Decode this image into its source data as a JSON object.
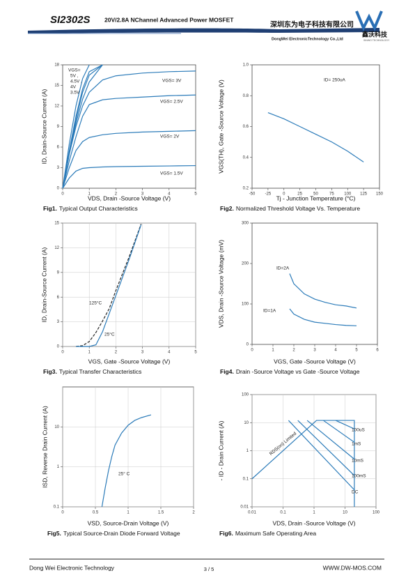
{
  "header": {
    "part": "SI2302S",
    "subtitle": "20V/2.8A  NChannel Advanced Power MOSFET",
    "company_cn": "深圳东为电子科技有限公司",
    "company_en": "DongWei ElectronicTechnology Co.,Ltd",
    "logo_cn": "鑫沃科技",
    "logo_en": "SINWO TECHNOLOGY"
  },
  "chart_data": [
    {
      "type": "line",
      "caption_number": "Fig1.",
      "caption": "Typical Output Characteristics",
      "xlabel": "VDS, Drain -Source Voltage (V)",
      "ylabel": "ID, Drain-Source Current (A)",
      "xlim": [
        0,
        5
      ],
      "ylim": [
        0,
        18
      ],
      "xticks": [
        0,
        1,
        2,
        3,
        4,
        5
      ],
      "yticks": [
        0,
        3,
        6,
        9,
        12,
        15,
        18
      ],
      "grid": false,
      "annotations": [
        "VGS="
      ],
      "x": [
        0,
        0.25,
        0.5,
        0.75,
        1,
        1.5,
        2,
        3,
        4,
        5
      ],
      "series": [
        {
          "name": "VGS= 3V",
          "color": "#2b7bb9",
          "values": [
            0,
            5,
            9,
            12,
            14,
            15.8,
            16.4,
            16.8,
            17,
            17.1
          ]
        },
        {
          "name": "VGS= 2.5V",
          "color": "#2b7bb9",
          "values": [
            0,
            4,
            7.5,
            10.5,
            12.2,
            12.9,
            13.1,
            13.3,
            13.5,
            13.6
          ]
        },
        {
          "name": "VGS= 2V",
          "color": "#2b7bb9",
          "values": [
            0,
            3,
            5.5,
            6.8,
            7.4,
            7.8,
            8,
            8.2,
            8.3,
            8.4
          ]
        },
        {
          "name": "VGS= 1.5V",
          "color": "#2b7bb9",
          "values": [
            0,
            1.5,
            2.5,
            2.9,
            3,
            3.1,
            3.15,
            3.2,
            3.25,
            3.3
          ]
        },
        {
          "name": "5V ,",
          "color": "#2b7bb9",
          "values": [
            0,
            6.5,
            12,
            16,
            18,
            null,
            null,
            null,
            null,
            null
          ]
        },
        {
          "name": "4.5V ,",
          "color": "#2b7bb9",
          "values": [
            0,
            5.5,
            10.5,
            14.5,
            17,
            18,
            null,
            null,
            null,
            null
          ]
        },
        {
          "name": "4V",
          "color": "#2b7bb9",
          "values": [
            0,
            5.2,
            10,
            14,
            16.5,
            18,
            null,
            null,
            null,
            null
          ]
        },
        {
          "name": "3.5V",
          "color": "#2b7bb9",
          "values": [
            0,
            5,
            9.5,
            13,
            15.5,
            18,
            null,
            null,
            null,
            null
          ]
        }
      ]
    },
    {
      "type": "line",
      "caption_number": "Fig2.",
      "caption": "Normalized Threshold Voltage Vs. Temperature",
      "xlabel": "Tj - Junction Temperature (°C)",
      "ylabel": "VGS(TH), Gate -Source Voltage (V)",
      "xlim": [
        -50,
        150
      ],
      "ylim": [
        0.2,
        1.0
      ],
      "xticks": [
        -50,
        -25,
        0,
        25,
        50,
        75,
        100,
        125,
        150
      ],
      "yticks": [
        0.2,
        0.4,
        0.6,
        0.8,
        {
          "value": 1.0,
          "label": "1.0"
        }
      ],
      "grid": false,
      "annotations": [
        "ID= 250uA"
      ],
      "x": [
        -25,
        0,
        25,
        50,
        75,
        100,
        125
      ],
      "series": [
        {
          "color": "#2b7bb9",
          "values": [
            0.69,
            0.65,
            0.6,
            0.55,
            0.5,
            0.44,
            0.37
          ]
        }
      ]
    },
    {
      "type": "line",
      "caption_number": "Fig3.",
      "caption": "Typical Transfer Characteristics",
      "xlabel": "VGS, Gate -Source Voltage (V)",
      "ylabel": "ID, Drain-Source Current (A)",
      "xlim": [
        0,
        5
      ],
      "ylim": [
        0,
        15
      ],
      "xticks": [
        0,
        1,
        2,
        3,
        4,
        5
      ],
      "yticks": [
        0,
        3,
        6,
        9,
        12,
        15
      ],
      "grid": true,
      "x": [
        0.5,
        0.75,
        1,
        1.25,
        1.5,
        1.75,
        2,
        2.5,
        2.95
      ],
      "series": [
        {
          "name": "125°C",
          "color": "#222222",
          "dashed": true,
          "values": [
            0,
            0.1,
            0.6,
            1.7,
            3.1,
            4.6,
            6.8,
            10.9,
            14.9
          ]
        },
        {
          "name": "25°C",
          "color": "#2b7bb9",
          "values": [
            0,
            0,
            0,
            0.2,
            1.8,
            4,
            6.2,
            10.6,
            14.8
          ]
        }
      ]
    },
    {
      "type": "line",
      "caption_number": "Fig4.",
      "caption": "Drain -Source Voltage vs Gate -Source Voltage",
      "xlabel": "VGS, Gate -Source Voltage (V)",
      "ylabel": "VDS, Drain -Source Voltage (mV)",
      "xlim": [
        0,
        6
      ],
      "ylim": [
        0,
        300
      ],
      "xticks": [
        0,
        1,
        2,
        3,
        4,
        5,
        6
      ],
      "yticks": [
        0,
        100,
        200,
        300
      ],
      "grid": false,
      "x": [
        1.8,
        2,
        2.5,
        3,
        3.5,
        4,
        4.5,
        5
      ],
      "series": [
        {
          "name": "ID=2A",
          "color": "#2b7bb9",
          "values": [
            175,
            150,
            125,
            112,
            104,
            98,
            95,
            90
          ]
        },
        {
          "name": "ID=1A",
          "color": "#2b7bb9",
          "values": [
            88,
            75,
            62,
            55,
            52,
            49,
            47,
            46
          ]
        }
      ]
    },
    {
      "type": "line",
      "caption_number": "Fig5.",
      "caption": "Typical Source-Drain Diode Forward Voltage",
      "xlabel": "VSD, Source-Drain Voltage (V)",
      "ylabel": "ISD, Reverse Drain Current (A)",
      "xlim": [
        0,
        2
      ],
      "ylim": [
        0.1,
        100
      ],
      "ylog": true,
      "xticks": [
        0,
        0.5,
        1,
        1.5,
        2
      ],
      "yticks": [
        0.1,
        1,
        10
      ],
      "grid": true,
      "annotations": [
        "25° C"
      ],
      "x": [
        0.6,
        0.65,
        0.7,
        0.75,
        0.8,
        0.9,
        1.0,
        1.1,
        1.2,
        1.35
      ],
      "series": [
        {
          "color": "#2b7bb9",
          "values": [
            0.1,
            0.3,
            0.8,
            1.8,
            3.5,
            7,
            11,
            14.5,
            17,
            20
          ]
        }
      ]
    },
    {
      "type": "line",
      "caption_number": "Fig6.",
      "caption": "Maximum Safe Operating Area",
      "xlabel": "VDS, Drain -Source Voltage (V)",
      "ylabel": "- ID - Drain Current (A)",
      "xlim": [
        0.01,
        100
      ],
      "ylim": [
        0.01,
        100
      ],
      "xlog": true,
      "ylog": true,
      "xticks": [
        0.01,
        0.1,
        1,
        10,
        100
      ],
      "yticks": [
        0.01,
        0.1,
        1,
        10,
        100
      ],
      "grid": true,
      "series": [
        {
          "name": "RDS(on) Limited",
          "color": "#2b7bb9",
          "x": [
            0.01,
            1.2,
            20,
            20
          ],
          "values": [
            0.1,
            12,
            12,
            0.01
          ]
        },
        {
          "name": "100uS",
          "color": "#2b7bb9",
          "x": [
            5,
            20
          ],
          "values": [
            12,
            6
          ]
        },
        {
          "name": "1mS",
          "color": "#2b7bb9",
          "x": [
            2,
            20
          ],
          "values": [
            12,
            2
          ]
        },
        {
          "name": "10mS",
          "color": "#2b7bb9",
          "x": [
            0.6,
            20
          ],
          "values": [
            12,
            0.5
          ]
        },
        {
          "name": "100mS",
          "color": "#2b7bb9",
          "x": [
            0.3,
            20
          ],
          "values": [
            12,
            0.13
          ]
        },
        {
          "name": "DC",
          "color": "#2b7bb9",
          "x": [
            0.15,
            20
          ],
          "values": [
            12,
            0.04
          ]
        }
      ]
    }
  ],
  "footer": {
    "left": "Dong Wei Electronic Technology",
    "page": "3 / 5",
    "right": "WWW.DW-MOS.COM"
  }
}
